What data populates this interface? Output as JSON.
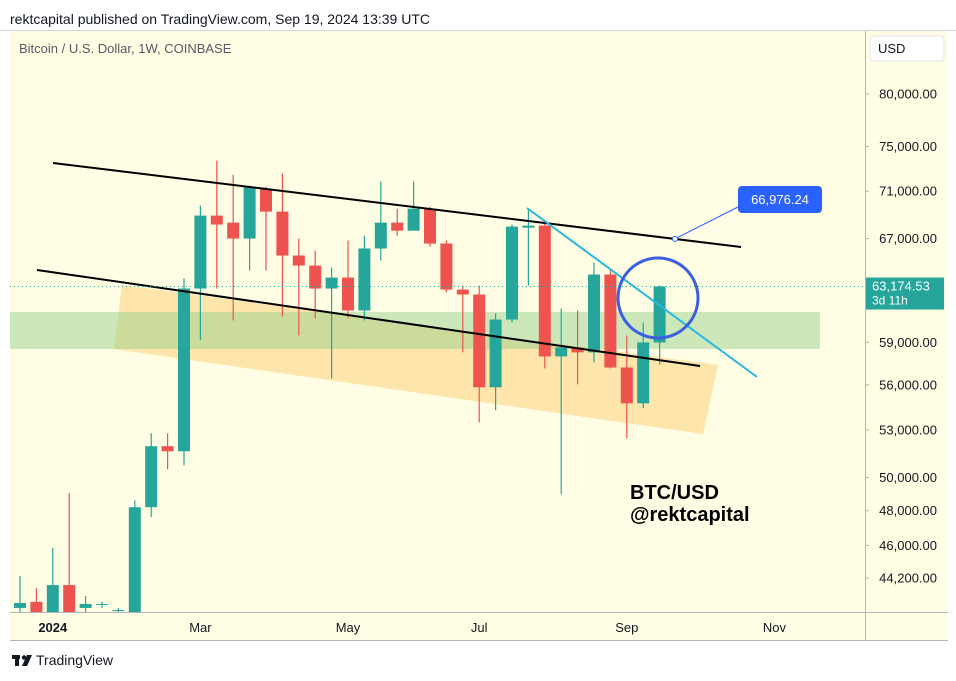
{
  "header": "rektcapital published on TradingView.com, Sep 19, 2024 13:39 UTC",
  "footer": "TradingView",
  "chart_data": {
    "type": "candlestick",
    "title": "Bitcoin / U.S. Dollar, 1W, COINBASE",
    "currency": "USD",
    "watermark": [
      "BTC/USD",
      "@rektcapital"
    ],
    "log": true,
    "grid": false,
    "up_color": "#26a69a",
    "down_color": "#ef5350",
    "categories": [
      null,
      null,
      "2024",
      null,
      null,
      null,
      null,
      null,
      null,
      null,
      null,
      "Mar",
      null,
      null,
      null,
      null,
      null,
      null,
      null,
      null,
      "May",
      null,
      null,
      null,
      null,
      null,
      null,
      null,
      "Jul",
      null,
      null,
      null,
      null,
      null,
      null,
      null,
      null,
      "Sep",
      null,
      null,
      null,
      null,
      null,
      null,
      null,
      null,
      "Nov",
      null,
      null,
      null,
      null,
      null
    ],
    "open": [
      42610,
      42930,
      42400,
      43820,
      42610,
      42820,
      42500,
      42400,
      48210,
      51950,
      51630,
      63020,
      68910,
      68320,
      67000,
      71230,
      69250,
      65620,
      64820,
      63020,
      63870,
      61350,
      66190,
      68320,
      67650,
      69500,
      66590,
      62940,
      62560,
      55840,
      60670,
      67900,
      68070,
      57990,
      58630,
      58280,
      64110,
      57210,
      54750,
      58990,
      null,
      null,
      null,
      null,
      null,
      null,
      null,
      null,
      null,
      null,
      null,
      null
    ],
    "high": [
      44310,
      43660,
      45860,
      49040,
      43240,
      42930,
      42610,
      48620,
      52780,
      52780,
      63800,
      69760,
      73700,
      72450,
      71490,
      71400,
      72540,
      67000,
      66030,
      64660,
      66840,
      67240,
      71840,
      69500,
      71840,
      69670,
      66840,
      63250,
      63250,
      61130,
      68160,
      69500,
      68320,
      61500,
      61350,
      65060,
      64420,
      59500,
      60450,
      63250,
      null,
      null,
      null,
      null,
      null,
      null,
      null,
      null,
      null,
      null,
      null,
      null
    ],
    "low": [
      42400,
      42400,
      42400,
      42400,
      42400,
      42610,
      42400,
      42400,
      47630,
      50500,
      50750,
      59140,
      63020,
      60600,
      64420,
      64420,
      60900,
      59500,
      60750,
      56450,
      60750,
      60600,
      65220,
      67240,
      67650,
      66340,
      62720,
      58280,
      53500,
      54290,
      60450,
      63250,
      57140,
      48980,
      56040,
      57570,
      57140,
      52460,
      54420,
      57430,
      null,
      null,
      null,
      null,
      null,
      null,
      null,
      null,
      null,
      null,
      null,
      null
    ],
    "close": [
      42870,
      42400,
      43820,
      42400,
      42820,
      42820,
      42500,
      48210,
      51950,
      51630,
      63020,
      68910,
      68160,
      67000,
      71400,
      69250,
      65620,
      64820,
      63020,
      63870,
      61350,
      66190,
      68320,
      67650,
      69500,
      66590,
      62940,
      62560,
      55840,
      60670,
      67990,
      68070,
      57990,
      58630,
      58280,
      64110,
      57210,
      54750,
      58990,
      63174.53,
      null,
      null,
      null,
      null,
      null,
      null,
      null,
      null,
      null,
      null,
      null,
      null
    ],
    "ylim": [
      42400,
      86400
    ],
    "yticks": [
      {
        "value": 44200,
        "label": "44,200.00"
      },
      {
        "value": 46000,
        "label": "46,000.00"
      },
      {
        "value": 48000,
        "label": "48,000.00"
      },
      {
        "value": 50000,
        "label": "50,000.00"
      },
      {
        "value": 53000,
        "label": "53,000.00"
      },
      {
        "value": 56000,
        "label": "56,000.00"
      },
      {
        "value": 59000,
        "label": "59,000.00"
      },
      {
        "value": 67000,
        "label": "67,000.00"
      },
      {
        "value": 71000,
        "label": "71,000.00"
      },
      {
        "value": 75000,
        "label": "75,000.00"
      },
      {
        "value": 80000,
        "label": "80,000.00"
      }
    ],
    "last_price": {
      "value": 63174.53,
      "label": "63,174.53",
      "countdown": "3d 11h"
    },
    "annotations": [
      {
        "value": 66976.24,
        "label": "66,976.24"
      }
    ]
  }
}
